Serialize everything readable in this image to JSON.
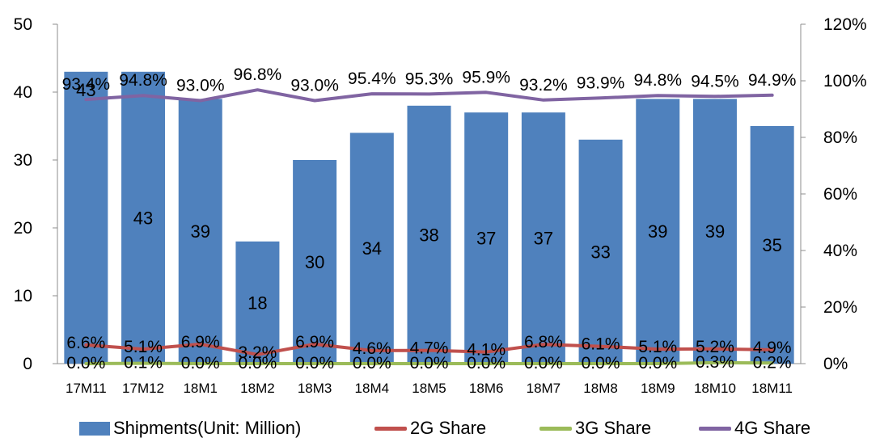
{
  "chart_data": {
    "type": "bar",
    "categories": [
      "17M11",
      "17M12",
      "18M1",
      "18M2",
      "18M3",
      "18M4",
      "18M5",
      "18M6",
      "18M7",
      "18M8",
      "18M9",
      "18M10",
      "18M11"
    ],
    "series": [
      {
        "name": "Shipments(Unit: Million)",
        "type": "bar",
        "axis": "left",
        "color": "#4f81bd",
        "values": [
          43,
          43,
          39,
          18,
          30,
          34,
          38,
          37,
          37,
          33,
          39,
          39,
          35
        ],
        "labels": [
          "43",
          "43",
          "39",
          "18",
          "30",
          "34",
          "38",
          "37",
          "37",
          "33",
          "39",
          "39",
          "35"
        ]
      },
      {
        "name": "2G Share",
        "type": "line",
        "axis": "right",
        "color": "#c0504d",
        "values": [
          6.6,
          5.1,
          6.9,
          3.2,
          6.9,
          4.6,
          4.7,
          4.1,
          6.8,
          6.1,
          5.1,
          5.2,
          4.9
        ],
        "labels": [
          "6.6%",
          "5.1%",
          "6.9%",
          "3.2%",
          "6.9%",
          "4.6%",
          "4.7%",
          "4.1%",
          "6.8%",
          "6.1%",
          "5.1%",
          "5.2%",
          "4.9%"
        ]
      },
      {
        "name": "3G Share",
        "type": "line",
        "axis": "right",
        "color": "#9bbb59",
        "values": [
          0.0,
          0.1,
          0.0,
          0.0,
          0.0,
          0.0,
          0.0,
          0.0,
          0.0,
          0.0,
          0.0,
          0.3,
          0.2
        ],
        "labels": [
          "0.0%",
          "0.1%",
          "0.0%",
          "0.0%",
          "0.0%",
          "0.0%",
          "0.0%",
          "0.0%",
          "0.0%",
          "0.0%",
          "0.0%",
          "0.3%",
          "0.2%"
        ]
      },
      {
        "name": "4G Share",
        "type": "line",
        "axis": "right",
        "color": "#8064a2",
        "values": [
          93.4,
          94.8,
          93.0,
          96.8,
          93.0,
          95.4,
          95.3,
          95.9,
          93.2,
          93.9,
          94.8,
          94.5,
          94.9
        ],
        "labels": [
          "93.4%",
          "94.8%",
          "93.0%",
          "96.8%",
          "93.0%",
          "95.4%",
          "95.3%",
          "95.9%",
          "93.2%",
          "93.9%",
          "94.8%",
          "94.5%",
          "94.9%"
        ]
      }
    ],
    "y_left": {
      "ylim": [
        0,
        50
      ],
      "ticks": [
        "0",
        "10",
        "20",
        "30",
        "40",
        "50"
      ]
    },
    "y_right": {
      "ylim": [
        0,
        120
      ],
      "ticks": [
        "0%",
        "20%",
        "40%",
        "60%",
        "80%",
        "100%",
        "120%"
      ]
    },
    "title": "",
    "xlabel": "",
    "ylabel": "",
    "grid": false,
    "legend": "bottom"
  }
}
